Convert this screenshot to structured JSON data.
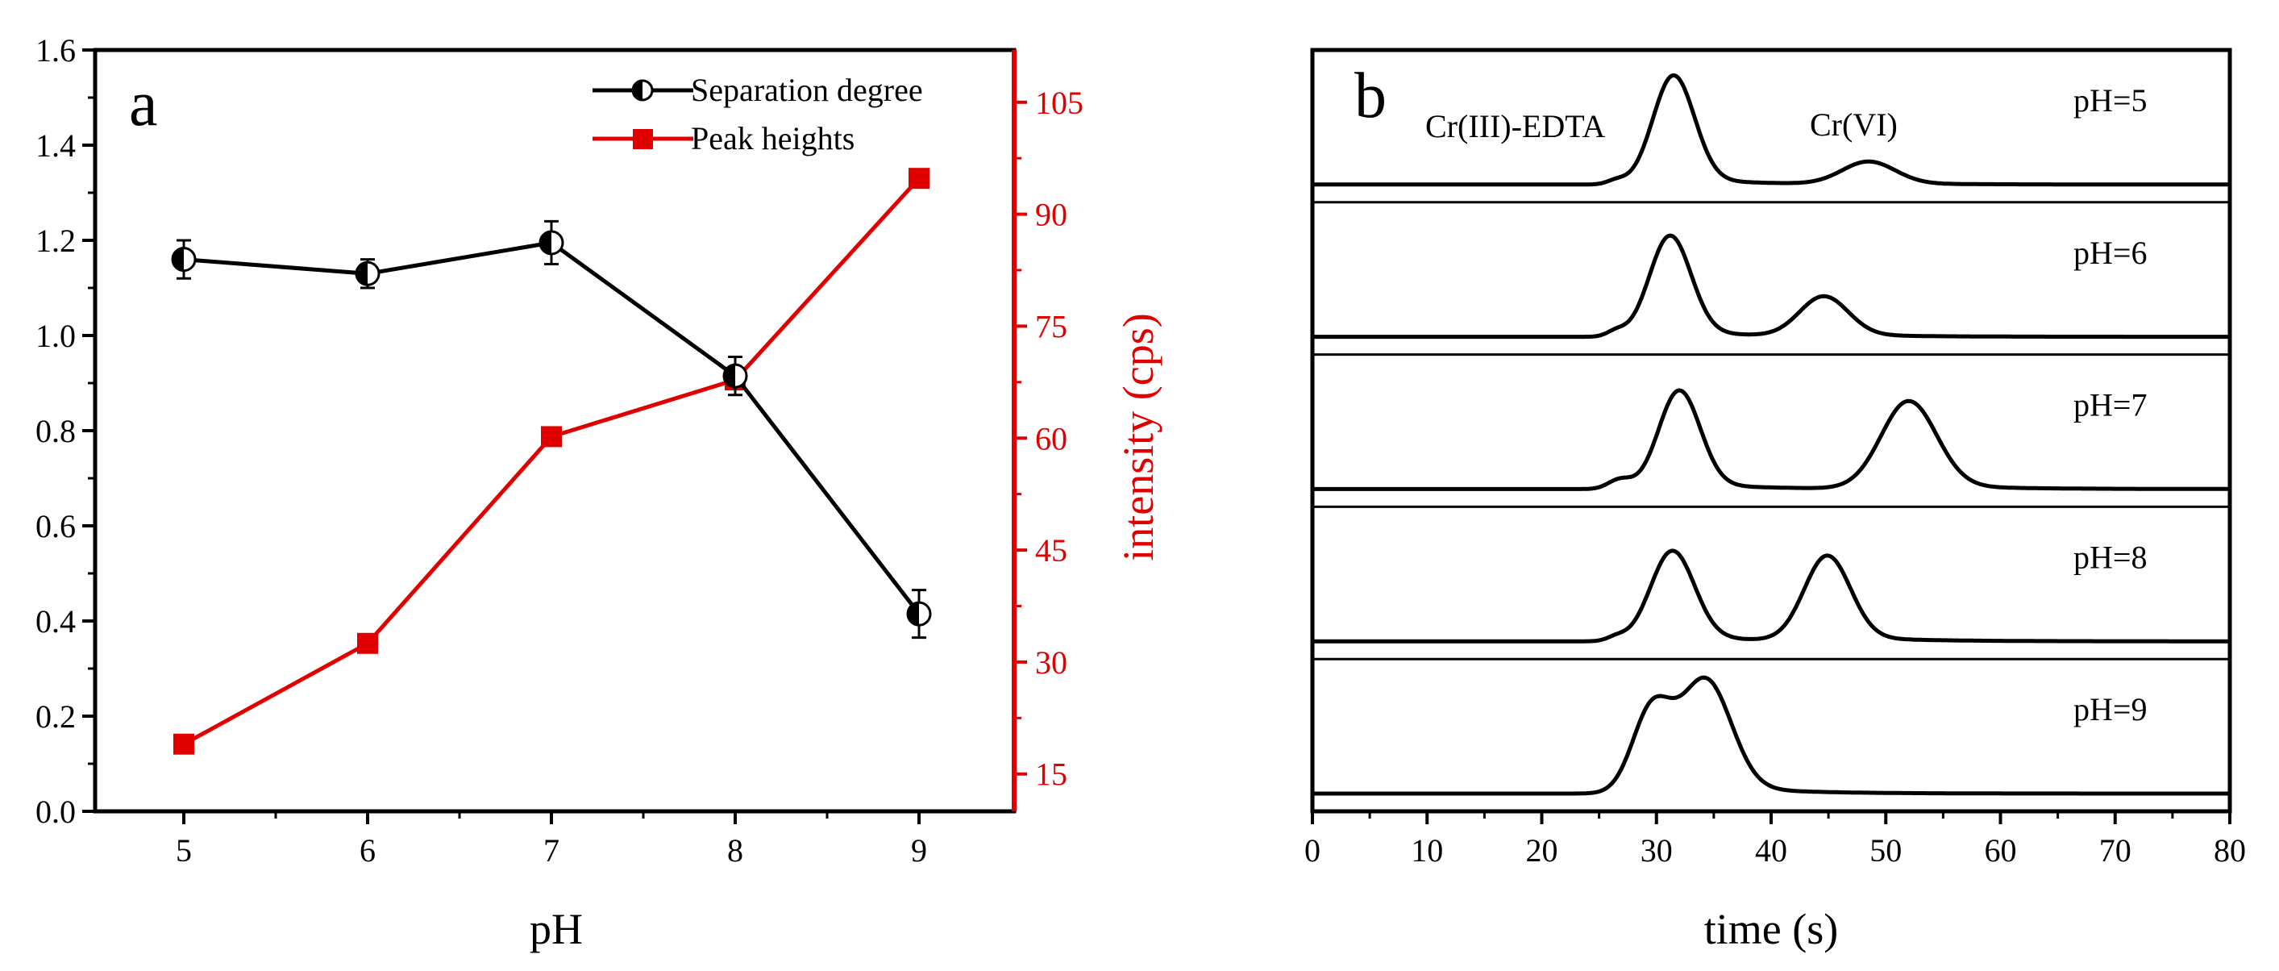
{
  "chart_data": [
    {
      "panel": "a",
      "type": "line",
      "panel_label": "a",
      "xlabel": "pH",
      "ylabel_left": "",
      "ylabel_right": "intensity (cps)",
      "x_ticks": [
        "5",
        "6",
        "7",
        "8",
        "9"
      ],
      "y_left_ticks": [
        "0.0",
        "0.2",
        "0.4",
        "0.6",
        "0.8",
        "1.0",
        "1.2",
        "1.4",
        "1.6"
      ],
      "y_right_ticks": [
        "15",
        "30",
        "45",
        "60",
        "75",
        "90",
        "105"
      ],
      "xlim": [
        4.5,
        9.5
      ],
      "ylim_left": [
        0,
        1.6
      ],
      "ylim_right": [
        10,
        112
      ],
      "series": [
        {
          "name": "Separation degree",
          "axis": "left",
          "color": "#000000",
          "marker": "half-filled-circle",
          "x": [
            5,
            6,
            7,
            8,
            9
          ],
          "values": [
            1.16,
            1.13,
            1.195,
            0.915,
            0.415
          ],
          "errors": [
            0.04,
            0.03,
            0.045,
            0.04,
            0.05
          ]
        },
        {
          "name": "Peak heights",
          "axis": "right",
          "color": "#e00000",
          "marker": "square",
          "x": [
            5,
            6,
            7,
            8,
            9
          ],
          "values": [
            19,
            32.5,
            60.2,
            67.8,
            94.8
          ]
        }
      ],
      "legend": {
        "placement": "top-right",
        "entries": [
          "Separation degree",
          "Peak heights"
        ]
      }
    },
    {
      "panel": "b",
      "type": "line",
      "panel_label": "b",
      "xlabel": "time (s)",
      "x_ticks": [
        "0",
        "10",
        "20",
        "30",
        "40",
        "50",
        "60",
        "70",
        "80"
      ],
      "xlim": [
        0,
        80
      ],
      "annotations": [
        "Cr(III)-EDTA",
        "Cr(VI)"
      ],
      "traces": [
        {
          "label": "pH=5",
          "peaks": [
            {
              "center": 31.5,
              "width": 1.8,
              "height": 0.82
            },
            {
              "center": 48.5,
              "width": 2.3,
              "height": 0.17
            },
            {
              "center": 26.5,
              "width": 0.8,
              "height": 0.03
            }
          ]
        },
        {
          "label": "pH=6",
          "peaks": [
            {
              "center": 31.2,
              "width": 1.8,
              "height": 0.76
            },
            {
              "center": 44.6,
              "width": 2.1,
              "height": 0.3
            },
            {
              "center": 26.5,
              "width": 0.8,
              "height": 0.04
            }
          ]
        },
        {
          "label": "pH=7",
          "peaks": [
            {
              "center": 32.0,
              "width": 1.8,
              "height": 0.74
            },
            {
              "center": 52.0,
              "width": 2.4,
              "height": 0.66
            },
            {
              "center": 26.8,
              "width": 1.0,
              "height": 0.07
            }
          ]
        },
        {
          "label": "pH=8",
          "peaks": [
            {
              "center": 31.4,
              "width": 1.9,
              "height": 0.68
            },
            {
              "center": 44.9,
              "width": 2.0,
              "height": 0.64
            },
            {
              "center": 26.5,
              "width": 0.8,
              "height": 0.03
            }
          ]
        },
        {
          "label": "pH=9",
          "peaks": [
            {
              "center": 29.6,
              "width": 1.7,
              "height": 0.62
            },
            {
              "center": 34.3,
              "width": 2.2,
              "height": 0.84
            }
          ]
        }
      ]
    }
  ]
}
